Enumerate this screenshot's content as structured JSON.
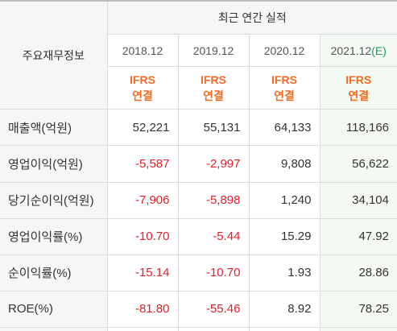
{
  "table": {
    "label_header": "주요재무정보",
    "group_header": "최근 연간 실적",
    "years": [
      {
        "year": "2018.12",
        "mark": ""
      },
      {
        "year": "2019.12",
        "mark": ""
      },
      {
        "year": "2020.12",
        "mark": ""
      },
      {
        "year": "2021.12",
        "mark": "(E)"
      }
    ],
    "standards": [
      {
        "line1": "IFRS",
        "line2": "연결"
      },
      {
        "line1": "IFRS",
        "line2": "연결"
      },
      {
        "line1": "IFRS",
        "line2": "연결"
      },
      {
        "line1": "IFRS",
        "line2": "연결"
      }
    ],
    "rows": [
      {
        "label": "매출액(억원)",
        "values": [
          "52,221",
          "55,131",
          "64,133",
          "118,166"
        ]
      },
      {
        "label": "영업이익(억원)",
        "values": [
          "-5,587",
          "-2,997",
          "9,808",
          "56,622"
        ]
      },
      {
        "label": "당기순이익(억원)",
        "values": [
          "-7,906",
          "-5,898",
          "1,240",
          "34,104"
        ]
      },
      {
        "label": "영업이익률(%)",
        "values": [
          "-10.70",
          "-5.44",
          "15.29",
          "47.92"
        ]
      },
      {
        "label": "순이익률(%)",
        "values": [
          "-15.14",
          "-10.70",
          "1.93",
          "28.86"
        ]
      },
      {
        "label": "ROE(%)",
        "values": [
          "-81.80",
          "-55.46",
          "8.92",
          "78.25"
        ]
      }
    ],
    "colors": {
      "negative": "#e0212b",
      "standard": "#f26a21",
      "estimate_mark": "#1fa050",
      "estimate_bg": "#f3faf3",
      "header_bg": "#f5f6f8"
    }
  }
}
